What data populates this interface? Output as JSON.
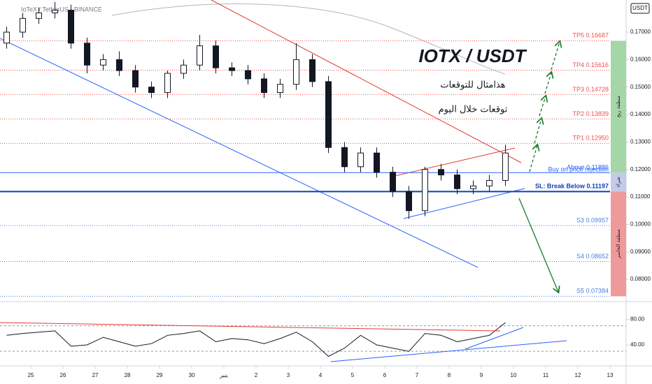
{
  "chart_data": [
    {
      "type": "candlestick",
      "title": "IOTX / USDT",
      "legend_text": "IoTeX / TetherUS · BINANCE",
      "currency": "USDT",
      "subtitles": [
        "هذامثال للتوقعات",
        "توقعات خلال اليوم"
      ],
      "annotations": [
        "Buy on price rejection"
      ],
      "zones": [
        "منطقة ربح",
        "شراء",
        "منطقة الخاسر"
      ],
      "x": [
        -0.75,
        -0.25,
        0.25,
        0.75,
        1.25,
        1.75,
        2.25,
        2.75,
        3.25,
        3.75,
        4.25,
        4.75,
        5.25,
        5.75,
        6.25,
        6.75,
        7.25,
        7.75,
        8.25,
        8.75,
        9.25,
        9.75,
        10.25,
        10.75,
        11.25,
        11.75,
        12.25,
        12.75,
        13.25,
        13.75,
        14.25,
        14.75
      ],
      "open": [
        0.166,
        0.17,
        0.175,
        0.177,
        0.178,
        0.166,
        0.158,
        0.16,
        0.156,
        0.15,
        0.148,
        0.155,
        0.158,
        0.165,
        0.157,
        0.156,
        0.153,
        0.148,
        0.151,
        0.16,
        0.152,
        0.128,
        0.121,
        0.126,
        0.119,
        0.112,
        0.105,
        0.12,
        0.118,
        0.113,
        0.114,
        0.116
      ],
      "high": [
        0.172,
        0.177,
        0.179,
        0.181,
        0.18,
        0.168,
        0.162,
        0.163,
        0.158,
        0.152,
        0.156,
        0.16,
        0.169,
        0.167,
        0.159,
        0.158,
        0.155,
        0.153,
        0.166,
        0.162,
        0.154,
        0.13,
        0.128,
        0.128,
        0.121,
        0.114,
        0.121,
        0.122,
        0.12,
        0.116,
        0.118,
        0.129
      ],
      "low": [
        0.164,
        0.168,
        0.173,
        0.175,
        0.164,
        0.155,
        0.156,
        0.154,
        0.148,
        0.146,
        0.146,
        0.153,
        0.156,
        0.155,
        0.154,
        0.151,
        0.146,
        0.146,
        0.149,
        0.15,
        0.126,
        0.119,
        0.119,
        0.117,
        0.11,
        0.102,
        0.103,
        0.116,
        0.111,
        0.111,
        0.112,
        0.114
      ],
      "close": [
        0.17,
        0.175,
        0.177,
        0.178,
        0.166,
        0.158,
        0.16,
        0.156,
        0.15,
        0.148,
        0.155,
        0.158,
        0.165,
        0.157,
        0.156,
        0.153,
        0.148,
        0.151,
        0.16,
        0.152,
        0.128,
        0.121,
        0.126,
        0.119,
        0.112,
        0.105,
        0.12,
        0.118,
        0.113,
        0.114,
        0.116,
        0.126
      ],
      "up_color": "#ffffff",
      "down_color": "#131722",
      "xlim": [
        -0.957,
        18.5
      ],
      "ylim": [
        0.0724,
        0.1817
      ],
      "yticks": [
        {
          "value": 0.08,
          "label": "0.08000"
        },
        {
          "value": 0.09,
          "label": "0.09000"
        },
        {
          "value": 0.1,
          "label": "0.10000"
        },
        {
          "value": 0.11,
          "label": "0.11000"
        },
        {
          "value": 0.12,
          "label": "0.12000"
        },
        {
          "value": 0.13,
          "label": "0.13000"
        },
        {
          "value": 0.14,
          "label": "0.14000"
        },
        {
          "value": 0.15,
          "label": "0.15000"
        },
        {
          "value": 0.16,
          "label": "0.16000"
        },
        {
          "value": 0.17,
          "label": "0.17000"
        }
      ],
      "levels": [
        {
          "label": "TP5 0.16687",
          "value": 0.16687,
          "color": "#ef5350",
          "style": "dotted"
        },
        {
          "label": "TP4 0.15616",
          "value": 0.15616,
          "color": "#ef5350",
          "style": "dotted"
        },
        {
          "label": "TP3 0.14728",
          "value": 0.14728,
          "color": "#ef5350",
          "style": "dotted"
        },
        {
          "label": "TP2 0.13839",
          "value": 0.13839,
          "color": "#ef5350",
          "style": "dotted"
        },
        {
          "label": "TP1 0.12950",
          "value": 0.1295,
          "color": "#ef5350",
          "style": "dotted"
        },
        {
          "label": "Above 0.11886",
          "value": 0.11886,
          "color": "#2962ff",
          "style": "solid"
        },
        {
          "label": "SL: Break Below 0.11197",
          "value": 0.11197,
          "color": "#0d3fb8",
          "style": "thick"
        },
        {
          "label": "S3 0.09957",
          "value": 0.09957,
          "color": "#4a7fdc",
          "style": "dotted"
        },
        {
          "label": "S4 0.08652",
          "value": 0.08652,
          "color": "#4a7fdc",
          "style": "dotted"
        },
        {
          "label": "S5 0.07384",
          "value": 0.07384,
          "color": "#4a7fdc",
          "style": "dotted"
        }
      ]
    },
    {
      "type": "line",
      "values": [
        55,
        58,
        60,
        62,
        38,
        40,
        52,
        45,
        38,
        42,
        55,
        58,
        62,
        45,
        50,
        48,
        42,
        50,
        60,
        45,
        22,
        35,
        55,
        40,
        35,
        30,
        58,
        55,
        45,
        50,
        55,
        75
      ],
      "color": "#131722",
      "bands": [
        30,
        70
      ],
      "xlim": [
        -0.957,
        18.5
      ],
      "ylim": [
        9.4,
        103.5
      ],
      "yticks": [
        {
          "value": 40,
          "label": "40.00"
        },
        {
          "value": 80,
          "label": "80.00"
        }
      ],
      "xticks": [
        {
          "value": 0,
          "label": "25"
        },
        {
          "value": 1,
          "label": "26"
        },
        {
          "value": 2,
          "label": "27"
        },
        {
          "value": 3,
          "label": "28"
        },
        {
          "value": 4,
          "label": "29"
        },
        {
          "value": 5,
          "label": "30"
        },
        {
          "value": 6,
          "label": "ينير"
        },
        {
          "value": 7,
          "label": "2"
        },
        {
          "value": 8,
          "label": "3"
        },
        {
          "value": 9,
          "label": "4"
        },
        {
          "value": 10,
          "label": "5"
        },
        {
          "value": 11,
          "label": "6"
        },
        {
          "value": 12,
          "label": "7"
        },
        {
          "value": 13,
          "label": "8"
        },
        {
          "value": 14,
          "label": "9"
        },
        {
          "value": 15,
          "label": "10"
        },
        {
          "value": 16,
          "label": "11"
        },
        {
          "value": 17,
          "label": "12"
        },
        {
          "value": 18,
          "label": "13"
        }
      ]
    }
  ]
}
